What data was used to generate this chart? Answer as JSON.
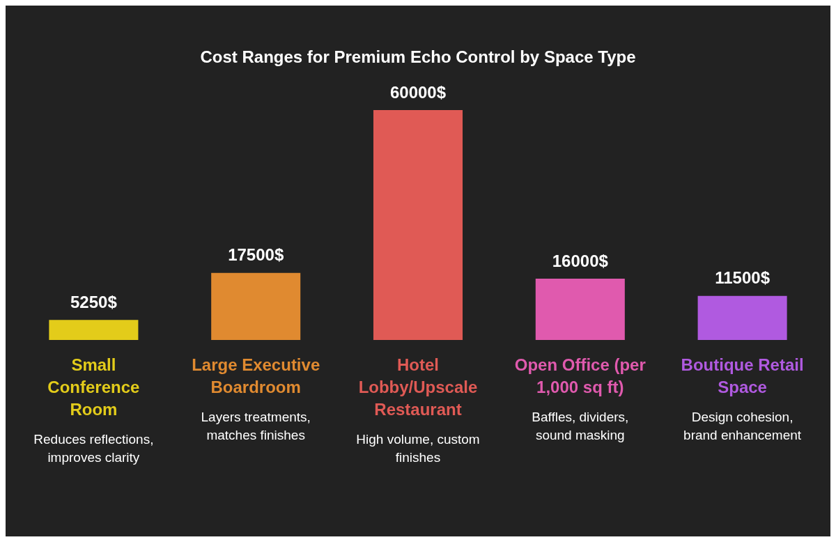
{
  "chart_data": {
    "type": "bar",
    "title": "Cost Ranges for Premium Echo Control by Space Type",
    "categories": [
      "Small Conference Room",
      "Large Executive Boardroom",
      "Hotel Lobby/Upscale Restaurant",
      "Open Office (per 1,000 sq ft)",
      "Boutique Retail Space"
    ],
    "values": [
      5250,
      17500,
      60000,
      16000,
      11500
    ],
    "colors": [
      "#e3cc1a",
      "#e08a30",
      "#e05a55",
      "#e05aae",
      "#b05ae0"
    ],
    "value_labels": [
      "5250$",
      "17500$",
      "60000$",
      "16000$",
      "11500$"
    ],
    "annotations": [
      "Reduces reflections, improves clarity",
      "Layers treatments, matches finishes",
      "High volume, custom finishes",
      "Baffles, dividers, sound masking",
      "Design cohesion, brand enhancement"
    ],
    "legend": false
  }
}
